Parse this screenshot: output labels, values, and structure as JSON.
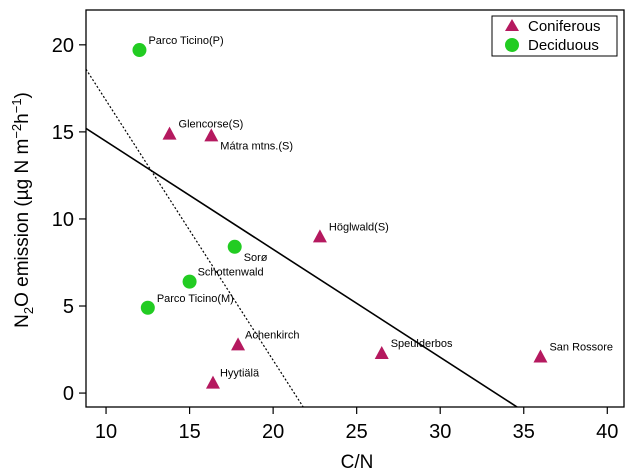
{
  "chart_data": {
    "type": "scatter",
    "title": "",
    "xlabel": "C/N",
    "ylabel": {
      "base": "N",
      "sub": "2",
      "rest": "O emission (µg N m",
      "sup1": "−2",
      "mid": "h",
      "sup2": "−1",
      "end": ")"
    },
    "xlim": [
      8.8,
      41
    ],
    "ylim": [
      -0.8,
      22
    ],
    "xticks": [
      10,
      15,
      20,
      25,
      30,
      35,
      40
    ],
    "yticks": [
      0,
      5,
      10,
      15,
      20
    ],
    "grid": false,
    "legend": "top-right",
    "series": [
      {
        "name": "Coniferous",
        "marker": "triangle",
        "color": "#b5195f",
        "points": [
          {
            "label": "Glencorse(S)",
            "x": 13.8,
            "y": 14.9
          },
          {
            "label": "Mátra mtns.(S)",
            "x": 16.3,
            "y": 14.8
          },
          {
            "label": "Höglwald(S)",
            "x": 22.8,
            "y": 9.0
          },
          {
            "label": "Achenkirch",
            "x": 17.9,
            "y": 2.8
          },
          {
            "label": "Speulderbos",
            "x": 26.5,
            "y": 2.3
          },
          {
            "label": "San Rossore",
            "x": 36.0,
            "y": 2.1
          },
          {
            "label": "Hyytiälä",
            "x": 16.4,
            "y": 0.6
          }
        ]
      },
      {
        "name": "Deciduous",
        "marker": "circle",
        "color": "#22cc22",
        "points": [
          {
            "label": "Parco Ticino(P)",
            "x": 12.0,
            "y": 19.7
          },
          {
            "label": "Sorø",
            "x": 17.7,
            "y": 8.4
          },
          {
            "label": "Schottenwald",
            "x": 15.0,
            "y": 6.4
          },
          {
            "label": "Parco Ticino(M)",
            "x": 12.5,
            "y": 4.9
          }
        ]
      }
    ],
    "lines": [
      {
        "style": "solid",
        "p1": {
          "x": 8.8,
          "y": 15.2
        },
        "p2": {
          "x": 34.6,
          "y": -0.8
        }
      },
      {
        "style": "dotted",
        "p1": {
          "x": 8.8,
          "y": 18.6
        },
        "p2": {
          "x": 21.8,
          "y": -0.8
        }
      }
    ]
  }
}
